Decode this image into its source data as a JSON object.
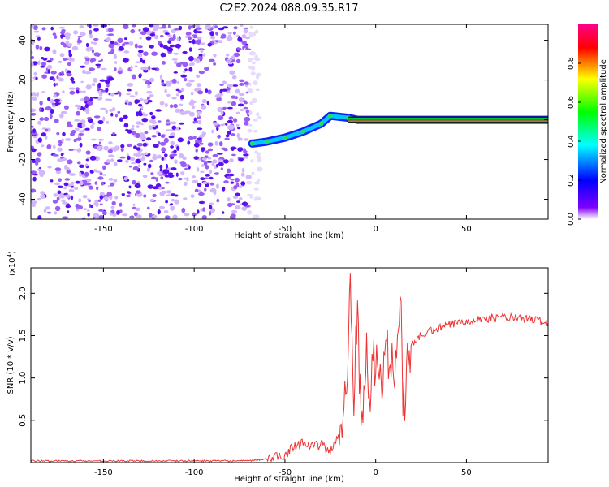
{
  "figure_title": "C2E2.2024.088.09.35.R17",
  "chart_data": [
    {
      "type": "heatmap",
      "title": "C2E2.2024.088.09.35.R17",
      "xlabel": "Height of straight line (km)",
      "ylabel": "Frequency (Hz)",
      "xlim": [
        -190,
        95
      ],
      "ylim": [
        -50,
        48
      ],
      "xticks": [
        -150,
        -100,
        -50,
        0,
        50
      ],
      "yticks": [
        -40,
        -20,
        0,
        20,
        40
      ],
      "colorbar": {
        "label": "Normalized spectral amplitude",
        "range": [
          0,
          1
        ],
        "ticks": [
          0.0,
          0.2,
          0.4,
          0.6,
          0.8
        ],
        "colors": [
          "#ffffff",
          "#7f00ff",
          "#0000ff",
          "#00ffff",
          "#00ff00",
          "#ffff00",
          "#ff0000",
          "#ff0088"
        ]
      },
      "features": {
        "noise_region_x": [
          -190,
          -70
        ],
        "noise_color": "#8a3ffc",
        "track_points": [
          {
            "x": -68,
            "y": -12
          },
          {
            "x": -60,
            "y": -11
          },
          {
            "x": -50,
            "y": -9
          },
          {
            "x": -40,
            "y": -6
          },
          {
            "x": -30,
            "y": -2
          },
          {
            "x": -25,
            "y": 2
          },
          {
            "x": -15,
            "y": 1
          },
          {
            "x": -10,
            "y": 0
          },
          {
            "x": 0,
            "y": 0
          },
          {
            "x": 10,
            "y": 0
          },
          {
            "x": 20,
            "y": 0
          },
          {
            "x": 50,
            "y": 0
          },
          {
            "x": 95,
            "y": 0
          }
        ],
        "steady_line_x": [
          -15,
          95
        ],
        "steady_line_y": 0
      },
      "grid": false
    },
    {
      "type": "line",
      "xlabel": "Height of straight line (km)",
      "ylabel": "SNR (10 * v/v)",
      "y_multiplier_label": "(x10",
      "y_multiplier_exp": "4",
      "y_multiplier_close": ")",
      "xlim": [
        -190,
        95
      ],
      "ylim": [
        0,
        2.3
      ],
      "xticks": [
        -150,
        -100,
        -50,
        0,
        50
      ],
      "yticks": [
        0.5,
        1.0,
        1.5,
        2.0
      ],
      "ytick_labels": [
        "0.5",
        "1.0",
        "1.5",
        "2.0"
      ],
      "series": [
        {
          "color": "#ee3333",
          "x": [
            -190,
            -150,
            -100,
            -70,
            -62,
            -55,
            -50,
            -45,
            -40,
            -35,
            -30,
            -25,
            -20,
            -18,
            -16,
            -15,
            -14,
            -13,
            -12,
            -10,
            -8,
            -5,
            -3,
            0,
            2,
            5,
            8,
            10,
            12,
            14,
            15,
            18,
            20,
            25,
            30,
            40,
            50,
            60,
            70,
            80,
            90,
            95
          ],
          "values": [
            0.02,
            0.02,
            0.02,
            0.02,
            0.04,
            0.06,
            0.1,
            0.2,
            0.25,
            0.18,
            0.22,
            0.12,
            0.35,
            0.6,
            1.0,
            1.6,
            2.3,
            1.3,
            0.9,
            1.7,
            0.6,
            1.2,
            0.8,
            1.3,
            1.0,
            1.15,
            1.3,
            1.1,
            1.45,
            1.9,
            0.5,
            1.3,
            1.4,
            1.5,
            1.55,
            1.62,
            1.68,
            1.7,
            1.72,
            1.7,
            1.68,
            1.65
          ]
        }
      ],
      "grid": false
    }
  ]
}
